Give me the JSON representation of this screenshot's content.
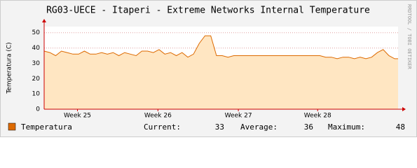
{
  "chart_data": {
    "type": "area",
    "title": "RG03-UECE - Itaperi - Extreme Networks Internal Temperature",
    "y_label": "Temperatura (C)",
    "side_note": "RRDTOOL / TOBI OETIKER",
    "x": [
      0,
      0.5,
      1,
      1.5,
      2,
      2.5,
      3,
      3.5,
      4,
      4.5,
      5,
      5.5,
      6,
      6.5,
      7,
      7.5,
      8,
      8.5,
      9,
      9.5,
      10,
      10.5,
      11,
      11.5,
      12,
      12.5,
      13,
      13.5,
      14,
      14.5,
      15,
      15.5,
      16,
      16.5,
      17,
      17.5,
      18,
      18.5,
      19,
      19.5,
      20,
      20.5,
      21,
      21.5,
      22,
      22.5,
      23,
      23.5,
      24,
      24.5,
      25,
      25.5,
      26,
      26.5,
      27,
      27.5,
      28,
      28.5,
      29,
      29.5,
      30,
      30.5,
      30.8
    ],
    "series": [
      {
        "name": "Temperatura",
        "color": "#dd6a00",
        "fill": "#ffe6c2",
        "values": [
          38,
          37,
          35,
          38,
          37,
          36,
          36,
          38,
          36,
          36,
          37,
          36,
          37,
          35,
          37,
          36,
          35,
          38,
          38,
          37,
          39,
          36,
          37,
          35,
          37,
          34,
          36,
          43,
          48,
          48,
          35,
          35,
          34,
          35,
          35,
          35,
          35,
          35,
          35,
          35,
          35,
          35,
          35,
          35,
          35,
          35,
          35,
          35,
          35,
          34,
          34,
          33,
          34,
          34,
          33,
          34,
          33,
          34,
          37,
          39,
          35,
          33,
          33
        ]
      }
    ],
    "xlim": [
      0,
      30.8
    ],
    "xticks": [
      {
        "value": 2.9,
        "label": "Week 25"
      },
      {
        "value": 9.9,
        "label": "Week 26"
      },
      {
        "value": 16.9,
        "label": "Week 27"
      },
      {
        "value": 23.8,
        "label": "Week 28"
      }
    ],
    "ylim": [
      0,
      54
    ],
    "yticks": [
      0,
      10,
      20,
      30,
      40,
      50
    ],
    "grid": true,
    "stats": [
      {
        "label": "Current:",
        "value": 33
      },
      {
        "label": "Average:",
        "value": 36
      },
      {
        "label": "Maximum:",
        "value": 48
      }
    ]
  }
}
